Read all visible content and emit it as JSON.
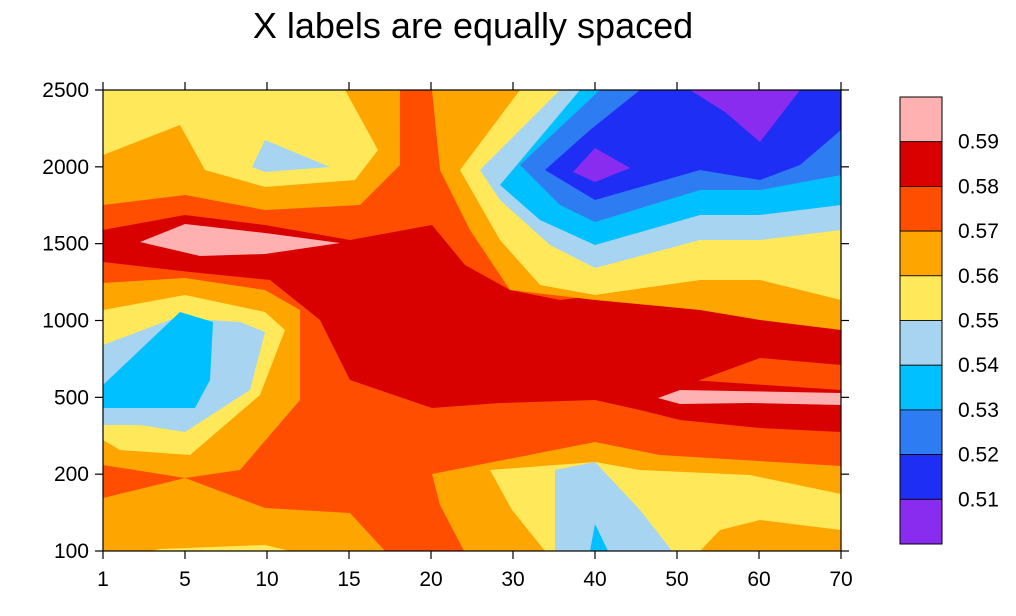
{
  "chart_data": {
    "type": "contour",
    "title": "X labels are equally spaced",
    "xlabel": "",
    "ylabel": "",
    "x_ticks": [
      "1",
      "5",
      "10",
      "15",
      "20",
      "30",
      "40",
      "50",
      "60",
      "70"
    ],
    "y_ticks": [
      "100",
      "200",
      "500",
      "1000",
      "1500",
      "2000",
      "2500"
    ],
    "x_spacing": "equal (categorical index)",
    "y_spacing": "equal (categorical index)",
    "levels": [
      0.51,
      0.52,
      0.53,
      0.54,
      0.55,
      0.56,
      0.57,
      0.58,
      0.59
    ],
    "legend": {
      "position": "right",
      "labels": [
        "0.59",
        "0.58",
        "0.57",
        "0.56",
        "0.55",
        "0.54",
        "0.53",
        "0.52",
        "0.51"
      ],
      "colors_top_to_bottom": [
        "#FFB0B0",
        "#D90000",
        "#FF4E00",
        "#FFA500",
        "#FFE95A",
        "#A6D4F1",
        "#00C0FF",
        "#2E7CF2",
        "#1F2EF5",
        "#8A2CF0"
      ]
    },
    "colors": {
      "pink": "#FFB0B0",
      "dark_red": "#D90000",
      "red_orange": "#FF4E00",
      "orange": "#FFA500",
      "yellow": "#FFE95A",
      "light_blue": "#A6D4F1",
      "cyan": "#00C0FF",
      "mid_blue": "#2E7CF2",
      "blue": "#1F2EF5",
      "purple": "#8A2CF0"
    }
  }
}
